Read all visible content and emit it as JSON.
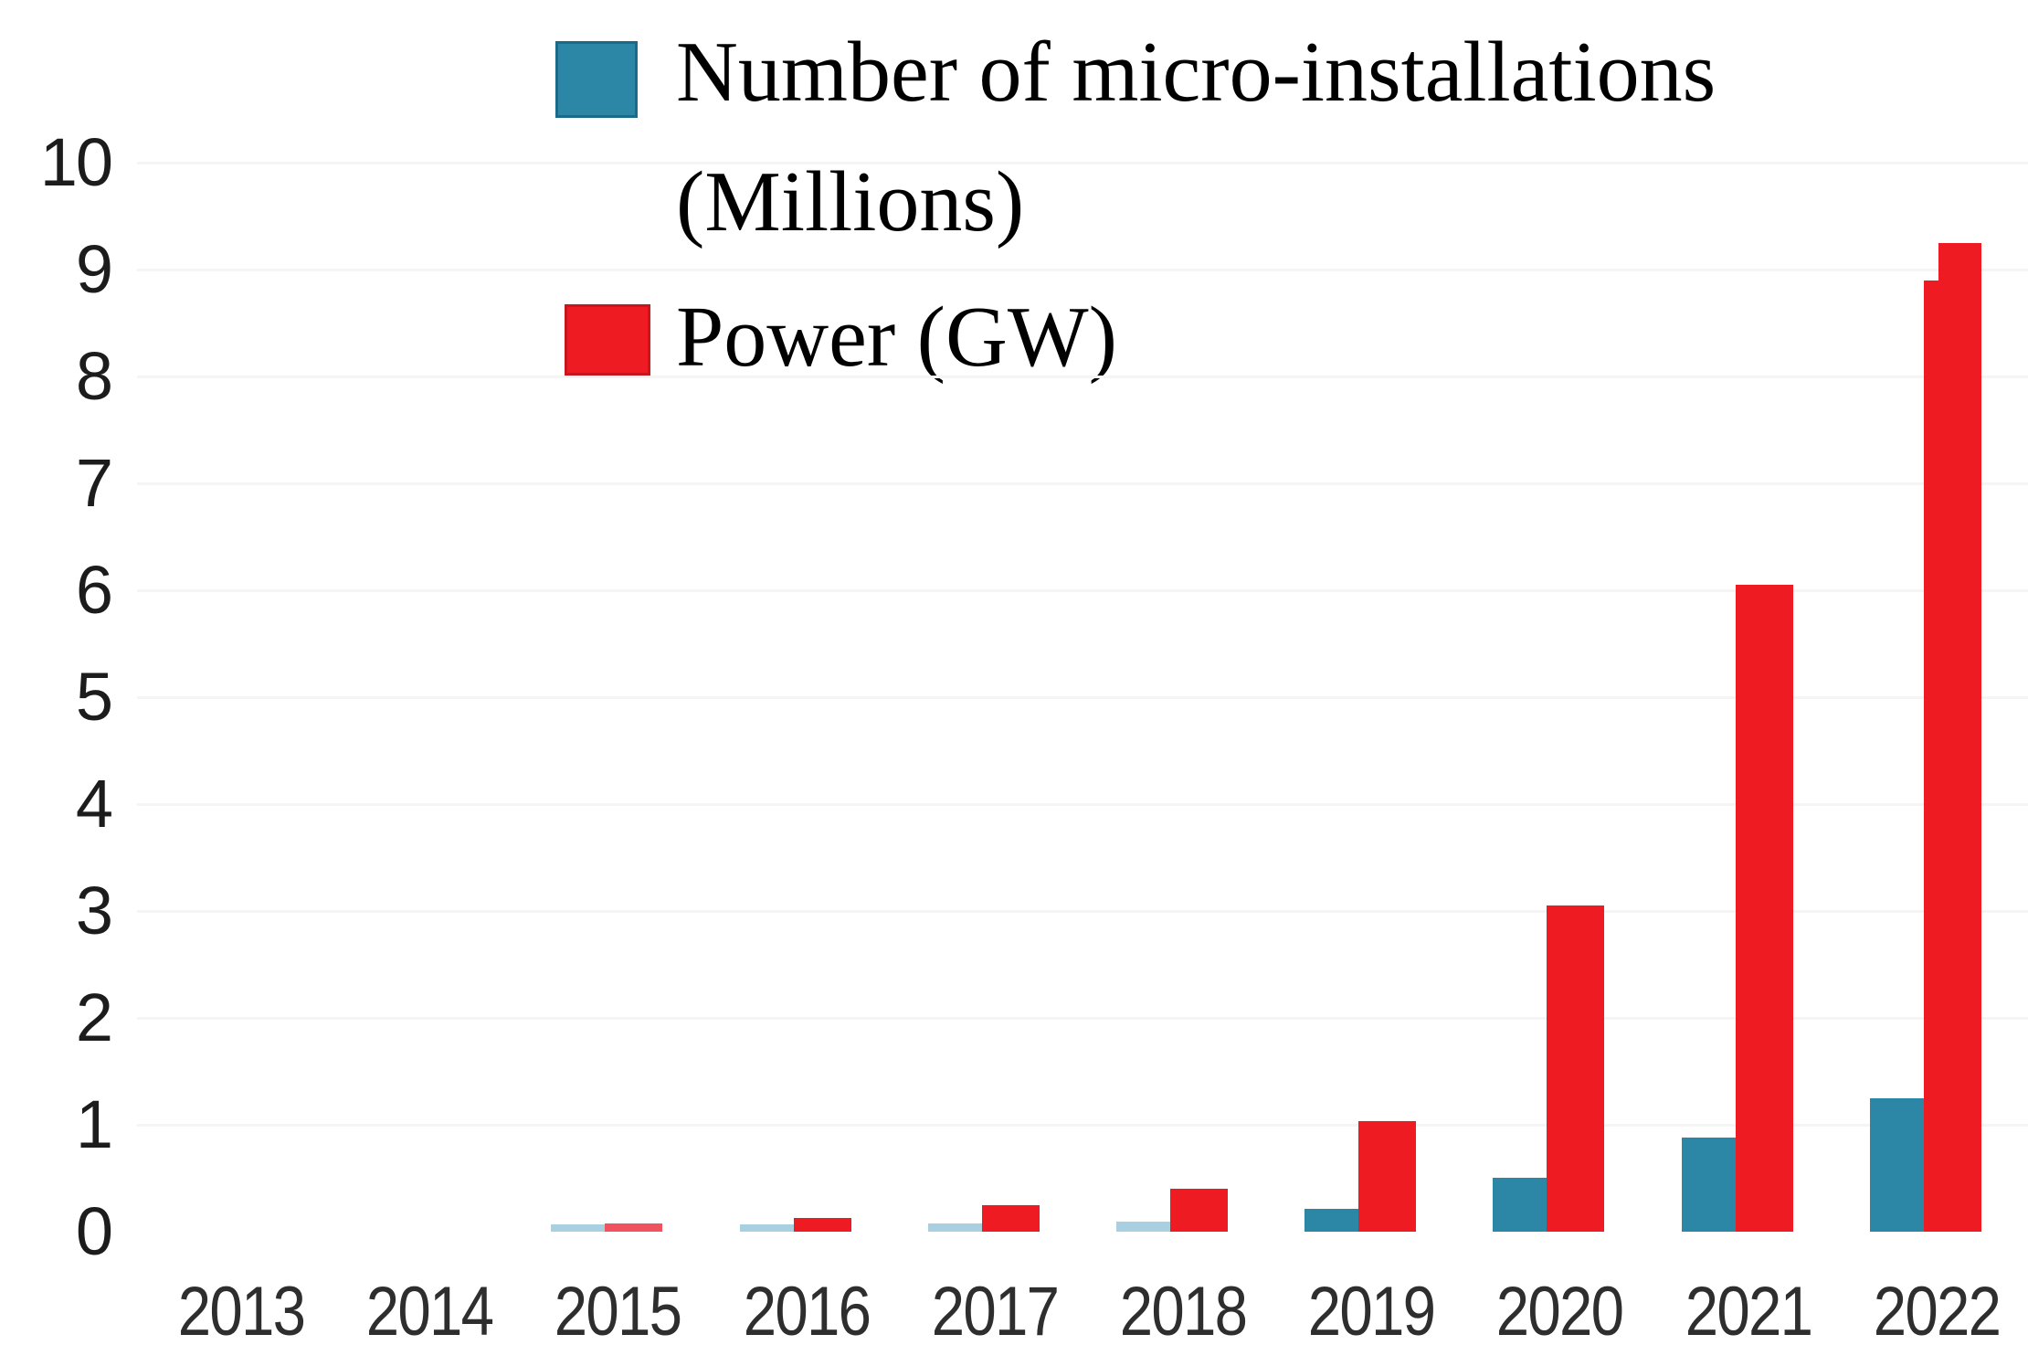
{
  "legend": {
    "items": [
      {
        "label": "Number of micro-installations (Millions)",
        "color": "#2C86A5",
        "border": "#1A6A8A"
      },
      {
        "label": "Power (GW)",
        "color": "#EE1B23",
        "border": "#C9151C"
      }
    ]
  },
  "chart_data": {
    "type": "bar",
    "title": "",
    "xlabel": "",
    "ylabel": "",
    "categories": [
      "2013",
      "2014",
      "2015",
      "2016",
      "2017",
      "2018",
      "2019",
      "2020",
      "2021",
      "2022"
    ],
    "series": [
      {
        "name": "Number of micro-installations (Millions)",
        "color": "#2C86A5",
        "color_small": "#A9D0E0",
        "values": [
          0,
          0,
          0.07,
          0.07,
          0.08,
          0.09,
          0.21,
          0.5,
          0.88,
          1.25
        ]
      },
      {
        "name": "Power (GW)",
        "color": "#EE1B23",
        "color_small": "#F0535E",
        "values": [
          0,
          0,
          0.08,
          0.13,
          0.25,
          0.4,
          1.03,
          3.05,
          6.05,
          9.25
        ]
      }
    ],
    "y_ticks": [
      0,
      1,
      2,
      3,
      4,
      5,
      6,
      7,
      8,
      9,
      10
    ],
    "ylim": [
      0,
      10
    ],
    "grid": "faint horizontal gridlines",
    "legend_position": "top-center",
    "annotations": {
      "power_2022_left_step_gw": 8.9
    }
  }
}
